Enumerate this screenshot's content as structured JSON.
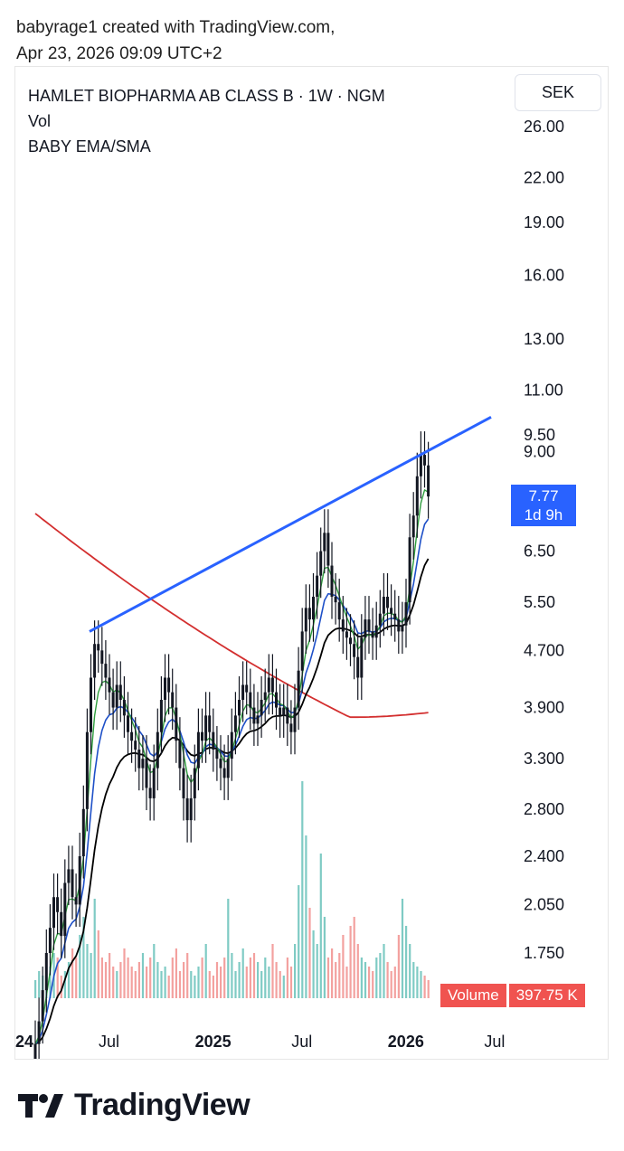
{
  "attribution": {
    "line1": "babyrage1 created with TradingView.com,",
    "line2": "Apr 23, 2026 09:09 UTC+2"
  },
  "legend": {
    "title": "HAMLET BIOPHARMA AB CLASS B · 1W · NGM",
    "vol": "Vol",
    "indicator": "BABY EMA/SMA"
  },
  "currency": "SEK",
  "price_tag": {
    "price": "7.77",
    "countdown": "1d 9h"
  },
  "volume_tag": {
    "label": "Volume",
    "value": "397.75 K"
  },
  "brand": {
    "name": "TradingView",
    "logo_icon": "tradingview-logo-icon"
  },
  "colors": {
    "up": "#26a69a",
    "down": "#ef5350",
    "candle": "#131722",
    "trendline": "#2962ff",
    "ema_fast": "#2e9e3e",
    "ema_mid": "#1e50c8",
    "sma_long": "#d32f2f",
    "sma_mid": "#000000"
  },
  "chart_data": {
    "type": "candlestick",
    "title": "HAMLET BIOPHARMA AB CLASS B · 1W · NGM",
    "scale": "log",
    "y_ticks": [
      "26.00",
      "22.00",
      "19.00",
      "16.00",
      "13.00",
      "11.00",
      "9.50",
      "9.00",
      "6.50",
      "5.50",
      "4.700",
      "3.900",
      "3.300",
      "2.800",
      "2.400",
      "2.050",
      "1.750"
    ],
    "x_ticks": [
      "24",
      "Jul",
      "2025",
      "Jul",
      "2026",
      "Jul"
    ],
    "last_price": 7.77,
    "trendline": {
      "from": {
        "date": "2024-06",
        "price": 5.0
      },
      "to": {
        "date": "2026-05",
        "price": 9.0
      }
    },
    "candles_close": [
      1.3,
      1.4,
      1.55,
      1.75,
      1.9,
      2.1,
      2.0,
      1.85,
      2.2,
      2.3,
      2.1,
      2.05,
      2.4,
      2.8,
      3.6,
      4.3,
      4.8,
      4.7,
      4.5,
      4.3,
      4.1,
      3.9,
      4.2,
      4.0,
      3.8,
      3.6,
      3.5,
      3.4,
      3.2,
      3.3,
      3.0,
      2.9,
      3.2,
      3.6,
      4.0,
      4.3,
      4.1,
      3.9,
      3.5,
      3.2,
      2.9,
      2.7,
      2.9,
      3.2,
      3.6,
      3.5,
      3.8,
      3.6,
      3.4,
      3.3,
      3.2,
      3.1,
      3.3,
      3.6,
      3.8,
      4.0,
      4.2,
      4.1,
      3.9,
      3.7,
      3.8,
      4.0,
      4.1,
      4.3,
      4.1,
      3.9,
      3.8,
      3.9,
      3.7,
      3.6,
      3.9,
      4.4,
      5.0,
      5.4,
      5.2,
      5.6,
      6.0,
      6.5,
      6.9,
      6.2,
      5.6,
      5.5,
      5.2,
      5.0,
      4.9,
      4.8,
      4.6,
      4.3,
      4.9,
      5.2,
      5.0,
      4.9,
      5.1,
      5.3,
      5.6,
      5.4,
      5.3,
      5.2,
      5.0,
      5.1,
      5.5,
      6.8,
      7.3,
      8.3,
      8.9,
      8.6,
      7.77
    ],
    "volume": [
      4,
      6,
      5,
      8,
      7,
      10,
      9,
      5,
      6,
      8,
      11,
      9,
      14,
      18,
      12,
      10,
      22,
      15,
      9,
      8,
      10,
      7,
      6,
      8,
      11,
      9,
      7,
      6,
      8,
      10,
      7,
      9,
      12,
      8,
      6,
      7,
      5,
      9,
      11,
      6,
      8,
      10,
      6,
      5,
      7,
      9,
      12,
      6,
      5,
      8,
      7,
      9,
      22,
      10,
      6,
      8,
      11,
      7,
      9,
      10,
      8,
      6,
      9,
      7,
      12,
      8,
      6,
      5,
      9,
      7,
      12,
      25,
      48,
      36,
      20,
      15,
      12,
      32,
      18,
      9,
      11,
      8,
      10,
      14,
      7,
      16,
      18,
      12,
      9,
      8,
      7,
      6,
      9,
      10,
      12,
      8,
      6,
      7,
      14,
      22,
      16,
      12,
      8,
      7,
      6,
      5,
      4
    ],
    "series": [
      {
        "name": "EMA fast",
        "color": "#2e9e3e"
      },
      {
        "name": "EMA mid",
        "color": "#1e50c8"
      },
      {
        "name": "SMA long",
        "color": "#d32f2f"
      },
      {
        "name": "SMA mid",
        "color": "#000000"
      }
    ]
  }
}
